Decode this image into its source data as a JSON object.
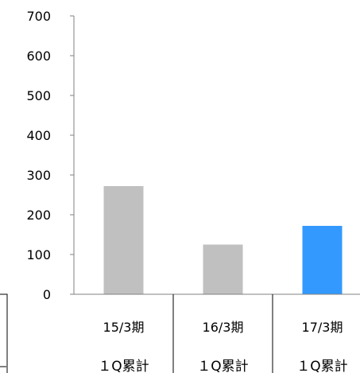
{
  "chart_data": {
    "type": "bar",
    "categories": [
      "15/3期",
      "16/3期",
      "17/3期"
    ],
    "category_sublabels": [
      "１Q累計",
      "１Q累計",
      "１Q累計"
    ],
    "values": [
      272,
      125,
      172
    ],
    "bar_colors": [
      "#c0c0c0",
      "#c0c0c0",
      "#3399ff"
    ],
    "ylim": [
      0,
      700
    ],
    "yticks": [
      0,
      100,
      200,
      300,
      400,
      500,
      600,
      700
    ],
    "title": "",
    "xlabel": "",
    "ylabel": "",
    "grid": false,
    "legend": "none"
  }
}
